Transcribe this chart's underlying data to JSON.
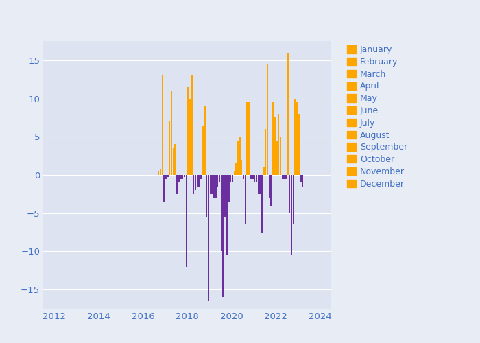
{
  "fig_facecolor": "#e8ecf5",
  "plot_bg_color": "#dde3f0",
  "bar_color_positive": "#FFA500",
  "bar_color_negative": "#6B2FA0",
  "legend_color": "#FFA500",
  "months": [
    "January",
    "February",
    "March",
    "April",
    "May",
    "June",
    "July",
    "August",
    "September",
    "October",
    "November",
    "December"
  ],
  "xlim": [
    2011.5,
    2024.5
  ],
  "ylim": [
    -17.5,
    17.5
  ],
  "yticks": [
    -15,
    -10,
    -5,
    0,
    5,
    10,
    15
  ],
  "xticks": [
    2012,
    2014,
    2016,
    2018,
    2020,
    2022,
    2024
  ],
  "tick_color": "#4472c4",
  "data": [
    {
      "year": 2016,
      "month": 9,
      "value": 0.5
    },
    {
      "year": 2016,
      "month": 10,
      "value": 0.7
    },
    {
      "year": 2016,
      "month": 11,
      "value": 13.0
    },
    {
      "year": 2016,
      "month": 12,
      "value": -3.5
    },
    {
      "year": 2017,
      "month": 1,
      "value": -0.5
    },
    {
      "year": 2017,
      "month": 2,
      "value": -0.3
    },
    {
      "year": 2017,
      "month": 3,
      "value": 7.0
    },
    {
      "year": 2017,
      "month": 4,
      "value": 11.0
    },
    {
      "year": 2017,
      "month": 5,
      "value": 3.5
    },
    {
      "year": 2017,
      "month": 6,
      "value": 4.0
    },
    {
      "year": 2017,
      "month": 7,
      "value": -2.5
    },
    {
      "year": 2017,
      "month": 8,
      "value": -1.0
    },
    {
      "year": 2017,
      "month": 9,
      "value": -0.5
    },
    {
      "year": 2017,
      "month": 10,
      "value": -0.5
    },
    {
      "year": 2017,
      "month": 11,
      "value": -0.3
    },
    {
      "year": 2017,
      "month": 12,
      "value": -12.0
    },
    {
      "year": 2018,
      "month": 1,
      "value": 11.5
    },
    {
      "year": 2018,
      "month": 2,
      "value": 10.0
    },
    {
      "year": 2018,
      "month": 3,
      "value": 13.0
    },
    {
      "year": 2018,
      "month": 4,
      "value": -2.5
    },
    {
      "year": 2018,
      "month": 5,
      "value": -2.0
    },
    {
      "year": 2018,
      "month": 6,
      "value": -1.5
    },
    {
      "year": 2018,
      "month": 7,
      "value": -1.5
    },
    {
      "year": 2018,
      "month": 8,
      "value": -0.5
    },
    {
      "year": 2018,
      "month": 9,
      "value": 6.5
    },
    {
      "year": 2018,
      "month": 10,
      "value": 9.0
    },
    {
      "year": 2018,
      "month": 11,
      "value": -5.5
    },
    {
      "year": 2018,
      "month": 12,
      "value": -16.5
    },
    {
      "year": 2019,
      "month": 1,
      "value": -2.5
    },
    {
      "year": 2019,
      "month": 2,
      "value": -2.5
    },
    {
      "year": 2019,
      "month": 3,
      "value": -3.0
    },
    {
      "year": 2019,
      "month": 4,
      "value": -3.0
    },
    {
      "year": 2019,
      "month": 5,
      "value": -1.5
    },
    {
      "year": 2019,
      "month": 6,
      "value": -1.0
    },
    {
      "year": 2019,
      "month": 7,
      "value": -10.0
    },
    {
      "year": 2019,
      "month": 8,
      "value": -16.0
    },
    {
      "year": 2019,
      "month": 9,
      "value": -5.5
    },
    {
      "year": 2019,
      "month": 10,
      "value": -10.5
    },
    {
      "year": 2019,
      "month": 11,
      "value": -3.5
    },
    {
      "year": 2019,
      "month": 12,
      "value": -1.0
    },
    {
      "year": 2020,
      "month": 1,
      "value": -1.0
    },
    {
      "year": 2020,
      "month": 2,
      "value": 0.5
    },
    {
      "year": 2020,
      "month": 3,
      "value": 1.5
    },
    {
      "year": 2020,
      "month": 4,
      "value": 4.5
    },
    {
      "year": 2020,
      "month": 5,
      "value": 5.0
    },
    {
      "year": 2020,
      "month": 6,
      "value": 2.0
    },
    {
      "year": 2020,
      "month": 7,
      "value": -0.5
    },
    {
      "year": 2020,
      "month": 8,
      "value": -6.5
    },
    {
      "year": 2020,
      "month": 9,
      "value": 9.5
    },
    {
      "year": 2020,
      "month": 10,
      "value": 9.5
    },
    {
      "year": 2020,
      "month": 11,
      "value": -0.5
    },
    {
      "year": 2020,
      "month": 12,
      "value": -0.5
    },
    {
      "year": 2021,
      "month": 1,
      "value": -1.0
    },
    {
      "year": 2021,
      "month": 2,
      "value": -1.0
    },
    {
      "year": 2021,
      "month": 3,
      "value": -2.5
    },
    {
      "year": 2021,
      "month": 4,
      "value": -2.5
    },
    {
      "year": 2021,
      "month": 5,
      "value": -7.5
    },
    {
      "year": 2021,
      "month": 6,
      "value": 1.0
    },
    {
      "year": 2021,
      "month": 7,
      "value": 6.0
    },
    {
      "year": 2021,
      "month": 8,
      "value": 14.5
    },
    {
      "year": 2021,
      "month": 9,
      "value": -3.0
    },
    {
      "year": 2021,
      "month": 10,
      "value": -4.0
    },
    {
      "year": 2021,
      "month": 11,
      "value": 9.5
    },
    {
      "year": 2021,
      "month": 12,
      "value": 7.5
    },
    {
      "year": 2022,
      "month": 1,
      "value": 4.5
    },
    {
      "year": 2022,
      "month": 2,
      "value": 8.0
    },
    {
      "year": 2022,
      "month": 3,
      "value": 5.0
    },
    {
      "year": 2022,
      "month": 4,
      "value": -0.5
    },
    {
      "year": 2022,
      "month": 5,
      "value": -0.5
    },
    {
      "year": 2022,
      "month": 6,
      "value": -0.5
    },
    {
      "year": 2022,
      "month": 7,
      "value": 16.0
    },
    {
      "year": 2022,
      "month": 8,
      "value": -5.0
    },
    {
      "year": 2022,
      "month": 9,
      "value": -10.5
    },
    {
      "year": 2022,
      "month": 10,
      "value": -6.5
    },
    {
      "year": 2022,
      "month": 11,
      "value": 10.0
    },
    {
      "year": 2022,
      "month": 12,
      "value": 9.5
    },
    {
      "year": 2023,
      "month": 1,
      "value": 8.0
    },
    {
      "year": 2023,
      "month": 2,
      "value": -1.0
    },
    {
      "year": 2023,
      "month": 3,
      "value": -1.5
    }
  ]
}
